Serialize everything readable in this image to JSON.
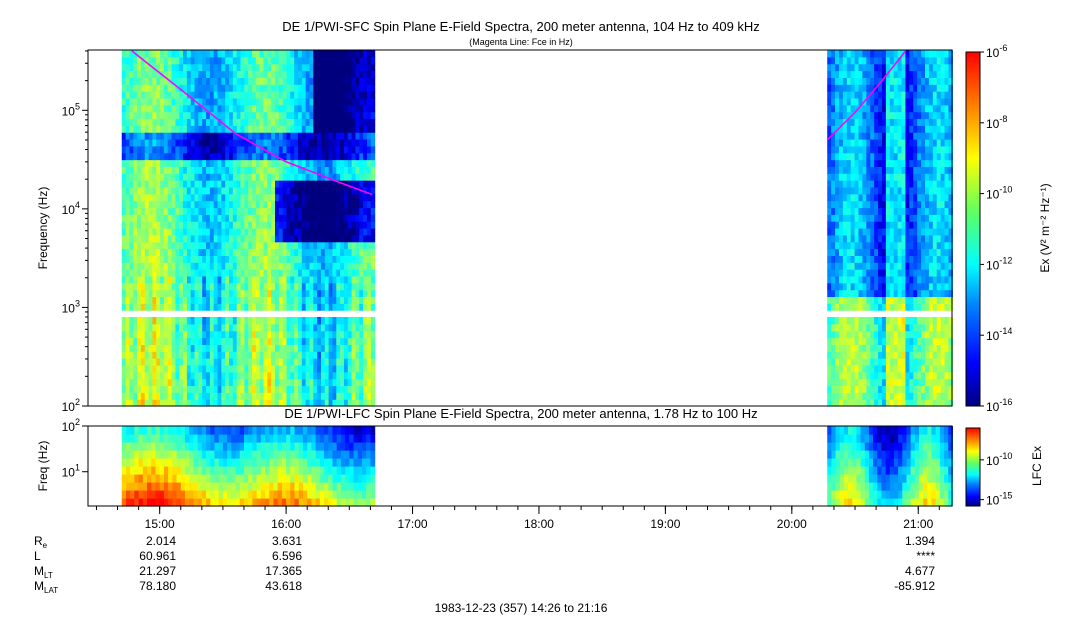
{
  "chart_data": [
    {
      "type": "heatmap",
      "title": "DE 1/PWI-SFC  Spin Plane E-Field Spectra, 200 meter antenna, 104 Hz to 409 kHz",
      "subtitle": "(Magenta Line: Fce in Hz)",
      "ylabel": "Frequency (Hz)",
      "yscale": "log",
      "ylim": [
        100,
        409000
      ],
      "y_ticks": [
        {
          "base": "10",
          "exp": "2"
        },
        {
          "base": "10",
          "exp": "3"
        },
        {
          "base": "10",
          "exp": "4"
        },
        {
          "base": "10",
          "exp": "5"
        }
      ],
      "data_intervals_ut": [
        [
          14.7,
          16.7
        ],
        [
          20.28,
          21.27
        ]
      ],
      "colorbar": {
        "label": "Ex (V² m⁻² Hz⁻¹)",
        "scale": "log",
        "range": [
          1e-16,
          1e-06
        ],
        "ticks": [
          {
            "base": "10",
            "exp": "-6"
          },
          {
            "base": "10",
            "exp": "-8"
          },
          {
            "base": "10",
            "exp": "-10"
          },
          {
            "base": "10",
            "exp": "-12"
          },
          {
            "base": "10",
            "exp": "-14"
          },
          {
            "base": "10",
            "exp": "-16"
          }
        ]
      },
      "fce_line": {
        "color": "#ff00ff",
        "segments": [
          {
            "t": [
              14.78,
              15.2,
              15.6,
              16.0,
              16.4,
              16.68
            ],
            "hz": [
              400000,
              150000,
              58000,
              30000,
              19000,
              14000
            ]
          },
          {
            "t": [
              20.28,
              20.5,
              20.7,
              20.9
            ],
            "hz": [
              50000,
              95000,
              190000,
              400000
            ]
          }
        ]
      }
    },
    {
      "type": "heatmap",
      "title": "DE 1/PWI-LFC  Spin Plane E-Field Spectra, 200 meter antenna, 1.78 Hz to 100 Hz",
      "ylabel": "Freq (Hz)",
      "yscale": "log",
      "ylim": [
        1.78,
        100
      ],
      "y_ticks": [
        {
          "base": "10",
          "exp": "1"
        },
        {
          "base": "10",
          "exp": "2"
        }
      ],
      "data_intervals_ut": [
        [
          14.7,
          16.7
        ],
        [
          20.28,
          21.27
        ]
      ],
      "colorbar": {
        "label": "LFC Ex",
        "scale": "log",
        "ticks": [
          {
            "base": "10",
            "exp": "-10"
          },
          {
            "base": "10",
            "exp": "-15"
          }
        ]
      }
    }
  ],
  "time_axis": {
    "range_ut": [
      14.433,
      21.267
    ],
    "ticks": [
      "15:00",
      "16:00",
      "17:00",
      "18:00",
      "19:00",
      "20:00",
      "21:00"
    ]
  },
  "ephemeris": {
    "rows": [
      {
        "label": "R",
        "sub": "e",
        "values": [
          "2.014",
          "3.631",
          "1.394"
        ]
      },
      {
        "label": "L",
        "sub": "",
        "values": [
          "60.961",
          "6.596",
          "****"
        ]
      },
      {
        "label": "M",
        "sub": "LT",
        "values": [
          "21.297",
          "17.365",
          "4.677"
        ]
      },
      {
        "label": "M",
        "sub": "LAT",
        "values": [
          "78.180",
          "43.618",
          "-85.912"
        ]
      }
    ]
  },
  "footer": "1983-12-23 (357) 14:26 to 21:16",
  "colors": {
    "magenta": "#ff00ff",
    "colormap": [
      "#00007f",
      "#0000ff",
      "#007fff",
      "#00ffff",
      "#7fff7f",
      "#ffff00",
      "#ff7f00",
      "#ff0000"
    ]
  }
}
